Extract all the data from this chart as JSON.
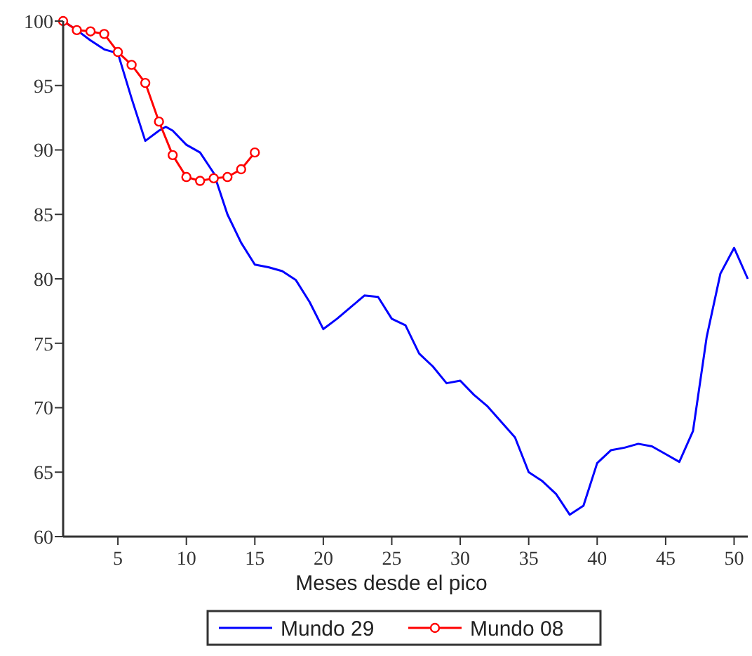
{
  "chart_data": {
    "type": "line",
    "xlabel": "Meses desde el pico",
    "xlim": [
      1,
      51
    ],
    "xticks": [
      5,
      10,
      15,
      20,
      25,
      30,
      35,
      40,
      45,
      50
    ],
    "ylim": [
      60,
      100
    ],
    "yticks": [
      60,
      65,
      70,
      75,
      80,
      85,
      90,
      95,
      100
    ],
    "grid": false,
    "legend": "bottom",
    "series": [
      {
        "name": "Mundo 29",
        "color": "#0000ff",
        "marker": "none",
        "x": [
          1,
          2,
          3,
          4,
          5,
          6,
          7,
          8,
          8.5,
          9,
          10,
          11,
          12,
          13,
          14,
          15,
          16,
          17,
          18,
          19,
          20,
          21,
          22,
          23,
          24,
          25,
          26,
          27,
          28,
          29,
          30,
          31,
          32,
          33,
          34,
          35,
          36,
          37,
          38,
          39,
          40,
          41,
          42,
          43,
          44,
          45,
          46,
          47,
          48,
          49,
          50,
          51
        ],
        "values": [
          100,
          99.3,
          98.5,
          97.8,
          97.5,
          94,
          90.7,
          91.5,
          91.8,
          91.5,
          90.4,
          89.8,
          88.2,
          85,
          82.8,
          81.1,
          80.9,
          80.6,
          79.9,
          78.2,
          76.1,
          76.9,
          77.8,
          78.7,
          78.6,
          76.9,
          76.4,
          74.2,
          73.2,
          71.9,
          72.1,
          71,
          70.1,
          68.9,
          67.7,
          65,
          64.3,
          63.3,
          61.7,
          62.4,
          65.7,
          66.7,
          66.9,
          67.2,
          67,
          66.4,
          65.8,
          68.2,
          75.5,
          80.4,
          82.4,
          80
        ]
      },
      {
        "name": "Mundo 08",
        "color": "#ff0000",
        "marker": "circle",
        "x": [
          1,
          2,
          3,
          4,
          5,
          6,
          7,
          8,
          9,
          10,
          11,
          12,
          13,
          14,
          15
        ],
        "values": [
          100,
          99.3,
          99.2,
          99,
          97.6,
          96.6,
          95.2,
          92.2,
          89.6,
          87.9,
          87.6,
          87.8,
          87.9,
          88.5,
          89.8
        ]
      }
    ]
  }
}
